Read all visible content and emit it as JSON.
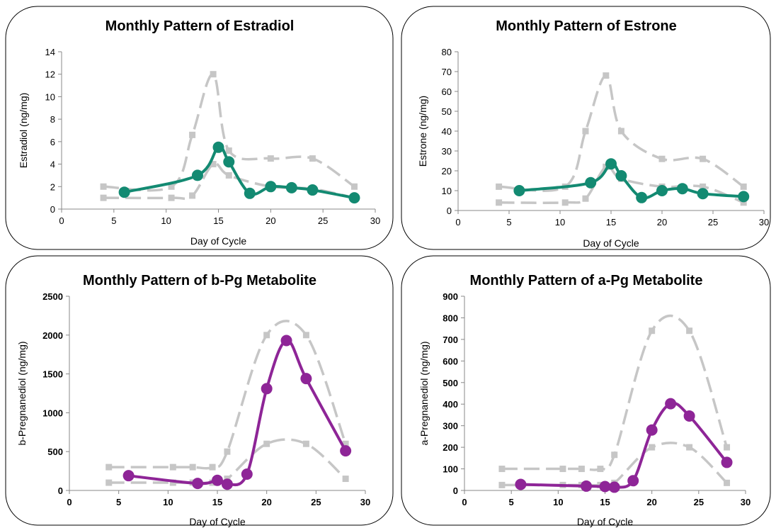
{
  "chart_data": [
    {
      "type": "line",
      "title": "Monthly Pattern of Estradiol",
      "xlabel": "Day of Cycle",
      "ylabel": "Estradiol (ng/mg)",
      "xlim": [
        0,
        30
      ],
      "ylim": [
        0,
        14
      ],
      "xticks": [
        0,
        5,
        10,
        15,
        20,
        25,
        30
      ],
      "yticks": [
        0,
        2,
        4,
        6,
        8,
        10,
        12,
        14
      ],
      "color": "#138a72",
      "series": [
        {
          "role": "upper-range",
          "x": [
            4,
            10.5,
            12.5,
            14.5,
            16,
            20,
            24,
            28
          ],
          "y": [
            2.0,
            2.0,
            6.6,
            12.0,
            5.2,
            4.5,
            4.5,
            2.0
          ]
        },
        {
          "role": "lower-range",
          "x": [
            4,
            10.5,
            12.5,
            14.5,
            16,
            20,
            24,
            28
          ],
          "y": [
            1.0,
            1.0,
            1.2,
            4.0,
            3.0,
            2.0,
            1.8,
            1.0
          ]
        },
        {
          "role": "main",
          "x": [
            6,
            13,
            15,
            16,
            18,
            20,
            22,
            24,
            28
          ],
          "y": [
            1.5,
            3.0,
            5.5,
            4.2,
            1.4,
            2.0,
            1.9,
            1.7,
            1.0
          ]
        }
      ]
    },
    {
      "type": "line",
      "title": "Monthly Pattern of Estrone",
      "xlabel": "Day of Cycle",
      "ylabel": "Estrone (ng/mg)",
      "xlim": [
        0,
        30
      ],
      "ylim": [
        0,
        80
      ],
      "xticks": [
        0,
        5,
        10,
        15,
        20,
        25,
        30
      ],
      "yticks": [
        0,
        10,
        20,
        30,
        40,
        50,
        60,
        70,
        80
      ],
      "color": "#138a72",
      "series": [
        {
          "role": "upper-range",
          "x": [
            4,
            10.5,
            12.5,
            14.5,
            16,
            20,
            24,
            28
          ],
          "y": [
            12,
            12,
            40,
            68,
            40,
            26,
            26,
            12
          ]
        },
        {
          "role": "lower-range",
          "x": [
            4,
            10.5,
            12.5,
            14.5,
            16,
            20,
            24,
            28
          ],
          "y": [
            4,
            4,
            6,
            22,
            16,
            12,
            12,
            4
          ]
        },
        {
          "role": "main",
          "x": [
            6,
            13,
            15,
            16,
            18,
            20,
            22,
            24,
            28
          ],
          "y": [
            10,
            14,
            23.5,
            17.5,
            6.5,
            10,
            11,
            8.5,
            7
          ]
        }
      ]
    },
    {
      "type": "line",
      "title": "Monthly Pattern of b-Pg Metabolite",
      "xlabel": "Day of Cycle",
      "ylabel": "b-Pregnanediol (ng/mg)",
      "xlim": [
        0,
        30
      ],
      "ylim": [
        0,
        2500
      ],
      "xticks": [
        0,
        5,
        10,
        15,
        20,
        25,
        30
      ],
      "yticks": [
        0,
        500,
        1000,
        1500,
        2000,
        2500
      ],
      "color": "#8e2597",
      "series": [
        {
          "role": "upper-range",
          "x": [
            4,
            10.5,
            12.5,
            14.5,
            16,
            20,
            24,
            28
          ],
          "y": [
            300,
            300,
            300,
            300,
            500,
            2000,
            2000,
            600
          ]
        },
        {
          "role": "lower-range",
          "x": [
            4,
            10.5,
            12.5,
            14.5,
            16,
            20,
            24,
            28
          ],
          "y": [
            100,
            100,
            100,
            100,
            150,
            600,
            600,
            150
          ]
        },
        {
          "role": "main",
          "x": [
            6,
            13,
            15,
            16,
            18,
            20,
            22,
            24,
            28
          ],
          "y": [
            190,
            90,
            130,
            80,
            210,
            1310,
            1930,
            1440,
            510
          ]
        }
      ]
    },
    {
      "type": "line",
      "title": "Monthly Pattern of a-Pg Metabolite",
      "xlabel": "Day of Cycle",
      "ylabel": "a-Pregnanediol (ng/mg)",
      "xlim": [
        0,
        30
      ],
      "ylim": [
        0,
        900
      ],
      "xticks": [
        0,
        5,
        10,
        15,
        20,
        25,
        30
      ],
      "yticks": [
        0,
        100,
        200,
        300,
        400,
        500,
        600,
        700,
        800,
        900
      ],
      "color": "#8e2597",
      "series": [
        {
          "role": "upper-range",
          "x": [
            4,
            10.5,
            12.5,
            14.5,
            16,
            20,
            24,
            28
          ],
          "y": [
            100,
            100,
            100,
            100,
            165,
            740,
            740,
            200
          ]
        },
        {
          "role": "lower-range",
          "x": [
            4,
            10.5,
            12.5,
            14.5,
            16,
            20,
            24,
            28
          ],
          "y": [
            25,
            25,
            25,
            25,
            35,
            200,
            200,
            35
          ]
        },
        {
          "role": "main",
          "x": [
            6,
            13,
            15,
            16,
            18,
            20,
            22,
            24,
            28
          ],
          "y": [
            28,
            20,
            18,
            15,
            45,
            280,
            402,
            345,
            130
          ]
        }
      ]
    }
  ]
}
